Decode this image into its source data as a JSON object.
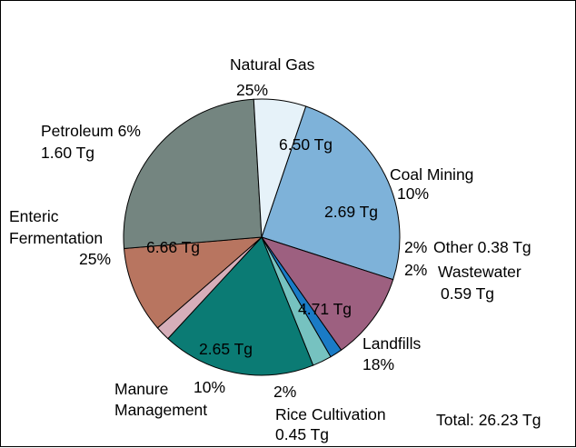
{
  "chart_data": {
    "type": "pie",
    "unit": "Tg",
    "total_label": "Total: 26.23 Tg",
    "slices": [
      {
        "id": "natural-gas",
        "label_lines": [
          "Natural Gas"
        ],
        "value": 6.5,
        "value_label": "6.50 Tg",
        "percent_label": "25%",
        "color": "#7eb2d9"
      },
      {
        "id": "coal-mining",
        "label_lines": [
          "Coal Mining"
        ],
        "value": 2.69,
        "value_label": "2.69 Tg",
        "percent_label": "10%",
        "color": "#9d6080"
      },
      {
        "id": "other",
        "label_lines": [
          "Other"
        ],
        "value": 0.38,
        "value_label": "0.38 Tg",
        "percent_label": "2%",
        "color": "#1a7bc6"
      },
      {
        "id": "wastewater",
        "label_lines": [
          "Wastewater"
        ],
        "value": 0.59,
        "value_label": "0.59 Tg",
        "percent_label": "2%",
        "color": "#76c2c0"
      },
      {
        "id": "landfills",
        "label_lines": [
          "Landfills"
        ],
        "value": 4.71,
        "value_label": "4.71 Tg",
        "percent_label": "18%",
        "color": "#0b7b74"
      },
      {
        "id": "rice-cultivation",
        "label_lines": [
          "Rice Cultivation"
        ],
        "value": 0.45,
        "value_label": "0.45 Tg",
        "percent_label": "2%",
        "color": "#d6aeb9"
      },
      {
        "id": "manure-management",
        "label_lines": [
          "Manure",
          "Management"
        ],
        "value": 2.65,
        "value_label": "2.65 Tg",
        "percent_label": "10%",
        "color": "#b87560"
      },
      {
        "id": "enteric-fermentation",
        "label_lines": [
          "Enteric",
          "Fermentation"
        ],
        "value": 6.66,
        "value_label": "6.66 Tg",
        "percent_label": "25%",
        "color": "#748580"
      },
      {
        "id": "petroleum",
        "label_lines": [
          "Petroleum"
        ],
        "value": 1.6,
        "value_label": "1.60 Tg",
        "percent_label": "6%",
        "color": "#e6f2f9"
      }
    ]
  }
}
